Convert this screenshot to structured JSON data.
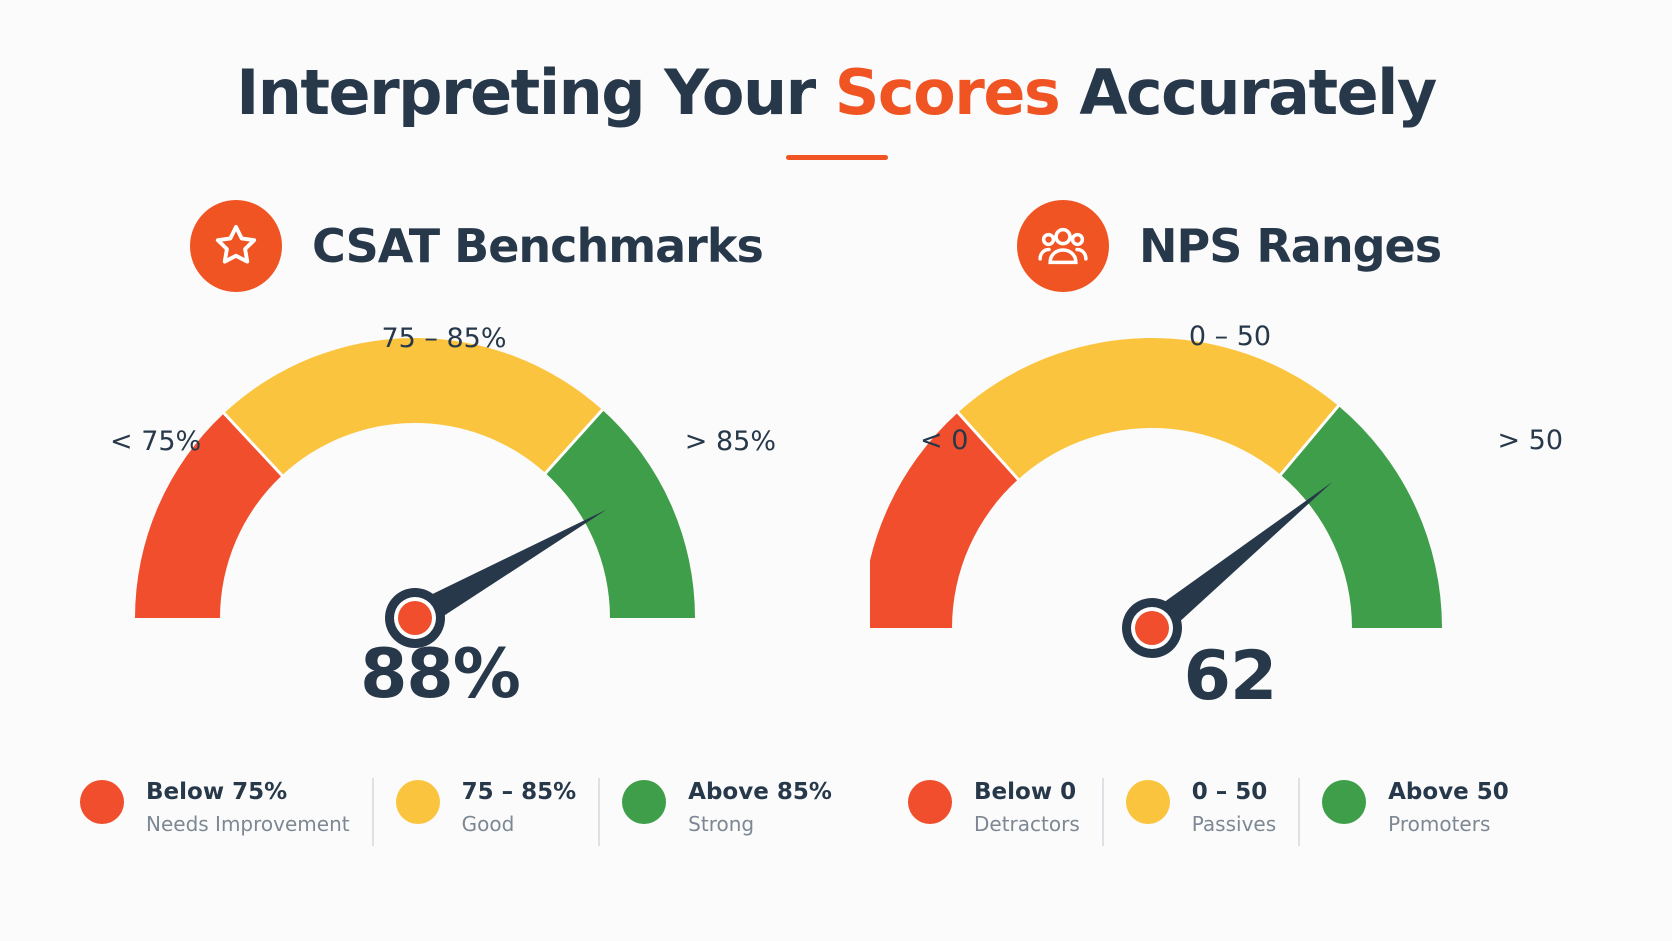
{
  "title": {
    "part1": "Interpreting Your ",
    "accent": "Scores",
    "part2": " Accurately"
  },
  "colors": {
    "red": "#f04e2c",
    "yellow": "#fbc43e",
    "green": "#3f9e49",
    "accent": "#f05423",
    "dark": "#27384a"
  },
  "csat": {
    "heading": "CSAT Benchmarks",
    "icon": "star-icon",
    "score": "88%",
    "top_label": "75 – 85%",
    "left_label": "< 75%",
    "right_label": "> 85%",
    "legend": [
      {
        "range": "Below 75%",
        "desc": "Needs Improvement",
        "color": "red"
      },
      {
        "range": "75 – 85%",
        "desc": "Good",
        "color": "yellow"
      },
      {
        "range": "Above 85%",
        "desc": "Strong",
        "color": "green"
      }
    ]
  },
  "nps": {
    "heading": "NPS Ranges",
    "icon": "users-icon",
    "score": "62",
    "top_label": "0 – 50",
    "left_label": "< 0",
    "right_label": "> 50",
    "legend": [
      {
        "range": "Below 0",
        "desc": "Detractors",
        "color": "red"
      },
      {
        "range": "0 – 50",
        "desc": "Passives",
        "color": "yellow"
      },
      {
        "range": "Above 50",
        "desc": "Promoters",
        "color": "green"
      }
    ]
  },
  "chart_data": [
    {
      "type": "gauge",
      "title": "CSAT Benchmarks",
      "value": 88,
      "unit": "%",
      "bands": [
        {
          "label": "< 75%",
          "range": [
            null,
            75
          ],
          "color": "#f04e2c",
          "meaning": "Needs Improvement"
        },
        {
          "label": "75 – 85%",
          "range": [
            75,
            85
          ],
          "color": "#fbc43e",
          "meaning": "Good"
        },
        {
          "label": "> 85%",
          "range": [
            85,
            null
          ],
          "color": "#3f9e49",
          "meaning": "Strong"
        }
      ]
    },
    {
      "type": "gauge",
      "title": "NPS Ranges",
      "value": 62,
      "bands": [
        {
          "label": "< 0",
          "range": [
            null,
            0
          ],
          "color": "#f04e2c",
          "meaning": "Detractors"
        },
        {
          "label": "0 – 50",
          "range": [
            0,
            50
          ],
          "color": "#fbc43e",
          "meaning": "Passives"
        },
        {
          "label": "> 50",
          "range": [
            50,
            null
          ],
          "color": "#3f9e49",
          "meaning": "Promoters"
        }
      ]
    }
  ]
}
